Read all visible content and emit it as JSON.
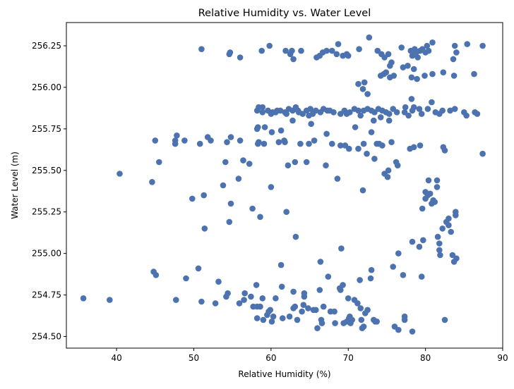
{
  "chart_data": {
    "type": "scatter",
    "title": "Relative Humidity vs. Water Level",
    "xlabel": "Relative Humidity (%)",
    "ylabel": "Water Level (m)",
    "xlim": [
      33.5,
      90
    ],
    "ylim": [
      254.43,
      256.39
    ],
    "xticks": [
      40,
      50,
      60,
      70,
      80,
      90
    ],
    "yticks": [
      254.5,
      254.75,
      255.0,
      255.25,
      255.5,
      255.75,
      256.0,
      256.25
    ],
    "grid": false,
    "marker_color": "#4c72b0",
    "points": [
      [
        35.7,
        254.73
      ],
      [
        39.1,
        254.72
      ],
      [
        40.4,
        255.48
      ],
      [
        44.6,
        255.43
      ],
      [
        44.8,
        254.89
      ],
      [
        45.1,
        254.87
      ],
      [
        45.0,
        255.68
      ],
      [
        45.5,
        255.55
      ],
      [
        47.6,
        255.68
      ],
      [
        47.6,
        255.66
      ],
      [
        47.8,
        255.71
      ],
      [
        47.7,
        254.72
      ],
      [
        48.8,
        255.68
      ],
      [
        49.0,
        254.85
      ],
      [
        49.8,
        255.33
      ],
      [
        50.6,
        254.91
      ],
      [
        50.8,
        255.66
      ],
      [
        51.0,
        254.71
      ],
      [
        51.3,
        255.35
      ],
      [
        51.4,
        255.15
      ],
      [
        51.0,
        256.23
      ],
      [
        51.8,
        255.7
      ],
      [
        52.2,
        255.68
      ],
      [
        52.8,
        254.7
      ],
      [
        53.2,
        254.83
      ],
      [
        53.8,
        255.41
      ],
      [
        54.1,
        255.55
      ],
      [
        54.2,
        254.74
      ],
      [
        54.3,
        255.67
      ],
      [
        54.4,
        254.76
      ],
      [
        54.8,
        255.7
      ],
      [
        54.6,
        255.19
      ],
      [
        54.8,
        255.3
      ],
      [
        54.6,
        256.2
      ],
      [
        54.7,
        256.21
      ],
      [
        55.8,
        255.45
      ],
      [
        56.0,
        255.68
      ],
      [
        55.9,
        254.7
      ],
      [
        56.0,
        256.18
      ],
      [
        56.4,
        255.56
      ],
      [
        56.5,
        254.72
      ],
      [
        56.6,
        254.76
      ],
      [
        57.2,
        255.54
      ],
      [
        57.4,
        254.74
      ],
      [
        57.6,
        255.27
      ],
      [
        57.7,
        254.68
      ],
      [
        58.1,
        254.81
      ],
      [
        58.2,
        254.61
      ],
      [
        58.2,
        254.68
      ],
      [
        58.3,
        255.76
      ],
      [
        58.2,
        255.75
      ],
      [
        58.3,
        255.66
      ],
      [
        58.4,
        255.67
      ],
      [
        58.2,
        255.86
      ],
      [
        58.4,
        255.88
      ],
      [
        58.6,
        254.68
      ],
      [
        58.6,
        255.22
      ],
      [
        58.8,
        256.22
      ],
      [
        58.9,
        254.73
      ],
      [
        58.9,
        255.88
      ],
      [
        59.1,
        255.66
      ],
      [
        59.2,
        255.76
      ],
      [
        59.0,
        254.6
      ],
      [
        59.5,
        254.63
      ],
      [
        59.7,
        254.65
      ],
      [
        59.8,
        256.25
      ],
      [
        59.9,
        254.66
      ],
      [
        60.0,
        255.4
      ],
      [
        60.1,
        255.73
      ],
      [
        60.1,
        254.59
      ],
      [
        60.2,
        255.85
      ],
      [
        60.3,
        254.62
      ],
      [
        60.6,
        254.73
      ],
      [
        60.8,
        255.86
      ],
      [
        61.0,
        255.67
      ],
      [
        61.3,
        255.74
      ],
      [
        61.3,
        254.93
      ],
      [
        61.4,
        254.8
      ],
      [
        61.5,
        254.61
      ],
      [
        61.7,
        255.68
      ],
      [
        61.8,
        255.67
      ],
      [
        62.0,
        255.25
      ],
      [
        62.2,
        255.53
      ],
      [
        62.4,
        254.62
      ],
      [
        62.5,
        256.2
      ],
      [
        62.8,
        255.8
      ],
      [
        62.9,
        254.67
      ],
      [
        62.9,
        254.77
      ],
      [
        63.1,
        254.68
      ],
      [
        63.2,
        255.1
      ],
      [
        63.1,
        255.55
      ],
      [
        63.4,
        254.6
      ],
      [
        63.6,
        255.85
      ],
      [
        63.8,
        255.66
      ],
      [
        63.9,
        256.22
      ],
      [
        64.0,
        254.65
      ],
      [
        64.2,
        254.69
      ],
      [
        64.3,
        254.74
      ],
      [
        64.3,
        254.76
      ],
      [
        64.6,
        255.55
      ],
      [
        64.8,
        254.67
      ],
      [
        64.9,
        255.66
      ],
      [
        65.2,
        255.78
      ],
      [
        65.5,
        254.66
      ],
      [
        65.6,
        255.68
      ],
      [
        65.8,
        254.66
      ],
      [
        66.0,
        254.55
      ],
      [
        66.3,
        254.78
      ],
      [
        66.4,
        254.95
      ],
      [
        66.5,
        254.6
      ],
      [
        66.6,
        254.58
      ],
      [
        66.8,
        254.68
      ],
      [
        67.1,
        255.53
      ],
      [
        67.2,
        255.72
      ],
      [
        67.4,
        254.86
      ],
      [
        67.7,
        254.65
      ],
      [
        67.9,
        255.66
      ],
      [
        68.2,
        254.65
      ],
      [
        68.3,
        254.58
      ],
      [
        68.6,
        255.45
      ],
      [
        68.9,
        254.79
      ],
      [
        69.0,
        254.78
      ],
      [
        69.0,
        255.65
      ],
      [
        69.1,
        255.03
      ],
      [
        69.3,
        254.81
      ],
      [
        69.4,
        254.58
      ],
      [
        69.6,
        255.65
      ],
      [
        69.8,
        254.59
      ],
      [
        70.0,
        254.73
      ],
      [
        70.1,
        255.63
      ],
      [
        70.1,
        254.61
      ],
      [
        70.2,
        254.62
      ],
      [
        70.3,
        254.58
      ],
      [
        70.5,
        254.6
      ],
      [
        70.8,
        254.72
      ],
      [
        70.9,
        255.76
      ],
      [
        71.2,
        254.7
      ],
      [
        71.3,
        255.63
      ],
      [
        71.5,
        254.84
      ],
      [
        71.6,
        254.67
      ],
      [
        71.7,
        254.6
      ],
      [
        71.8,
        254.55
      ],
      [
        71.9,
        255.38
      ],
      [
        72.0,
        254.56
      ],
      [
        72.0,
        255.66
      ],
      [
        72.2,
        254.64
      ],
      [
        72.4,
        255.6
      ],
      [
        72.5,
        254.66
      ],
      [
        72.9,
        254.85
      ],
      [
        73.0,
        254.9
      ],
      [
        73.3,
        254.6
      ],
      [
        73.4,
        255.57
      ],
      [
        73.5,
        254.59
      ],
      [
        73.7,
        254.59
      ],
      [
        73.7,
        255.66
      ],
      [
        74.0,
        255.66
      ],
      [
        74.4,
        255.65
      ],
      [
        74.7,
        255.48
      ],
      [
        75.1,
        255.46
      ],
      [
        75.2,
        255.5
      ],
      [
        75.6,
        255.67
      ],
      [
        75.8,
        254.92
      ],
      [
        76.0,
        254.56
      ],
      [
        76.2,
        255.55
      ],
      [
        76.4,
        255.53
      ],
      [
        76.5,
        255.0
      ],
      [
        76.5,
        254.54
      ],
      [
        77.1,
        254.87
      ],
      [
        77.3,
        254.62
      ],
      [
        77.3,
        254.6
      ],
      [
        78.0,
        255.63
      ],
      [
        78.3,
        254.53
      ],
      [
        78.3,
        255.07
      ],
      [
        78.5,
        255.64
      ],
      [
        79.2,
        255.04
      ],
      [
        79.3,
        255.65
      ],
      [
        79.5,
        254.86
      ],
      [
        79.6,
        255.27
      ],
      [
        79.7,
        255.08
      ],
      [
        80.0,
        255.33
      ],
      [
        80.0,
        255.37
      ],
      [
        80.3,
        255.35
      ],
      [
        80.4,
        255.44
      ],
      [
        80.6,
        255.36
      ],
      [
        80.8,
        255.3
      ],
      [
        81.0,
        255.32
      ],
      [
        81.2,
        255.31
      ],
      [
        81.5,
        255.44
      ],
      [
        81.5,
        255.4
      ],
      [
        81.6,
        255.1
      ],
      [
        81.8,
        255.06
      ],
      [
        81.8,
        255.02
      ],
      [
        81.9,
        254.99
      ],
      [
        82.2,
        255.15
      ],
      [
        82.3,
        255.64
      ],
      [
        82.5,
        255.62
      ],
      [
        82.5,
        254.6
      ],
      [
        82.7,
        255.19
      ],
      [
        83.0,
        255.17
      ],
      [
        83.0,
        255.21
      ],
      [
        83.3,
        255.13
      ],
      [
        83.5,
        254.99
      ],
      [
        83.7,
        254.95
      ],
      [
        83.9,
        255.25
      ],
      [
        83.9,
        255.23
      ],
      [
        84.0,
        254.97
      ],
      [
        87.4,
        255.6
      ],
      [
        60.6,
        255.85
      ],
      [
        61.2,
        255.86
      ],
      [
        61.8,
        255.85
      ],
      [
        62.3,
        255.87
      ],
      [
        62.8,
        255.86
      ],
      [
        63.2,
        255.88
      ],
      [
        63.5,
        255.86
      ],
      [
        64.1,
        255.84
      ],
      [
        64.6,
        255.86
      ],
      [
        65.1,
        255.87
      ],
      [
        65.4,
        255.84
      ],
      [
        65.8,
        255.86
      ],
      [
        66.4,
        255.85
      ],
      [
        66.8,
        255.87
      ],
      [
        67.3,
        255.86
      ],
      [
        68.1,
        255.85
      ],
      [
        69.0,
        255.84
      ],
      [
        69.5,
        255.86
      ],
      [
        70.2,
        255.85
      ],
      [
        70.8,
        255.87
      ],
      [
        71.3,
        255.86
      ],
      [
        71.6,
        255.83
      ],
      [
        72.0,
        255.86
      ],
      [
        72.5,
        255.87
      ],
      [
        73.0,
        255.86
      ],
      [
        73.4,
        255.85
      ],
      [
        73.9,
        255.87
      ],
      [
        74.4,
        255.86
      ],
      [
        74.9,
        255.85
      ],
      [
        75.3,
        255.84
      ],
      [
        75.8,
        255.87
      ],
      [
        76.3,
        255.85
      ],
      [
        77.3,
        255.85
      ],
      [
        77.8,
        255.83
      ],
      [
        78.3,
        255.86
      ],
      [
        78.5,
        255.88
      ],
      [
        79.2,
        255.87
      ],
      [
        79.5,
        255.84
      ],
      [
        80.3,
        255.87
      ],
      [
        80.8,
        255.91
      ],
      [
        81.3,
        255.85
      ],
      [
        81.8,
        255.84
      ],
      [
        82.2,
        255.86
      ],
      [
        83.2,
        255.86
      ],
      [
        83.8,
        255.87
      ],
      [
        85.0,
        255.85
      ],
      [
        85.3,
        255.83
      ],
      [
        86.4,
        255.85
      ],
      [
        86.7,
        255.84
      ],
      [
        60.0,
        255.84
      ],
      [
        58.9,
        255.85
      ],
      [
        59.6,
        255.86
      ],
      [
        62.0,
        255.84
      ],
      [
        64.9,
        255.83
      ],
      [
        67.6,
        255.86
      ],
      [
        69.8,
        255.84
      ],
      [
        73.3,
        255.8
      ],
      [
        75.3,
        255.8
      ],
      [
        73.0,
        255.73
      ],
      [
        74.2,
        255.82
      ],
      [
        78.2,
        255.93
      ],
      [
        77.4,
        255.88
      ],
      [
        61.9,
        256.22
      ],
      [
        62.9,
        256.17
      ],
      [
        62.7,
        256.22
      ],
      [
        65.9,
        256.18
      ],
      [
        66.3,
        256.19
      ],
      [
        66.7,
        256.21
      ],
      [
        67.2,
        256.22
      ],
      [
        67.9,
        256.22
      ],
      [
        68.5,
        256.2
      ],
      [
        68.7,
        256.26
      ],
      [
        69.3,
        256.19
      ],
      [
        69.8,
        256.2
      ],
      [
        70.0,
        256.19
      ],
      [
        71.4,
        256.23
      ],
      [
        72.7,
        256.3
      ],
      [
        73.8,
        256.22
      ],
      [
        74.3,
        256.2
      ],
      [
        74.7,
        256.18
      ],
      [
        75.2,
        256.2
      ],
      [
        75.4,
        256.13
      ],
      [
        75.6,
        256.15
      ],
      [
        76.9,
        256.24
      ],
      [
        77.1,
        256.12
      ],
      [
        77.7,
        256.13
      ],
      [
        78.1,
        256.22
      ],
      [
        78.3,
        256.19
      ],
      [
        78.6,
        256.23
      ],
      [
        78.8,
        256.21
      ],
      [
        79.0,
        256.18
      ],
      [
        79.3,
        256.22
      ],
      [
        79.6,
        256.23
      ],
      [
        80.0,
        256.21
      ],
      [
        80.2,
        256.25
      ],
      [
        80.4,
        256.22
      ],
      [
        80.9,
        256.27
      ],
      [
        83.6,
        256.17
      ],
      [
        83.8,
        256.25
      ],
      [
        84.0,
        256.21
      ],
      [
        85.4,
        256.26
      ],
      [
        87.4,
        256.25
      ],
      [
        78.5,
        256.11
      ],
      [
        79.9,
        256.07
      ],
      [
        80.9,
        256.08
      ],
      [
        82.3,
        256.09
      ],
      [
        83.7,
        256.07
      ],
      [
        86.3,
        256.08
      ],
      [
        71.3,
        256.02
      ],
      [
        71.9,
        255.99
      ],
      [
        72.1,
        256.03
      ],
      [
        72.5,
        255.96
      ],
      [
        74.2,
        256.07
      ],
      [
        74.6,
        256.08
      ],
      [
        74.9,
        256.09
      ],
      [
        75.4,
        256.06
      ],
      [
        75.9,
        256.07
      ],
      [
        78.2,
        256.06
      ],
      [
        78.9,
        256.05
      ]
    ]
  }
}
